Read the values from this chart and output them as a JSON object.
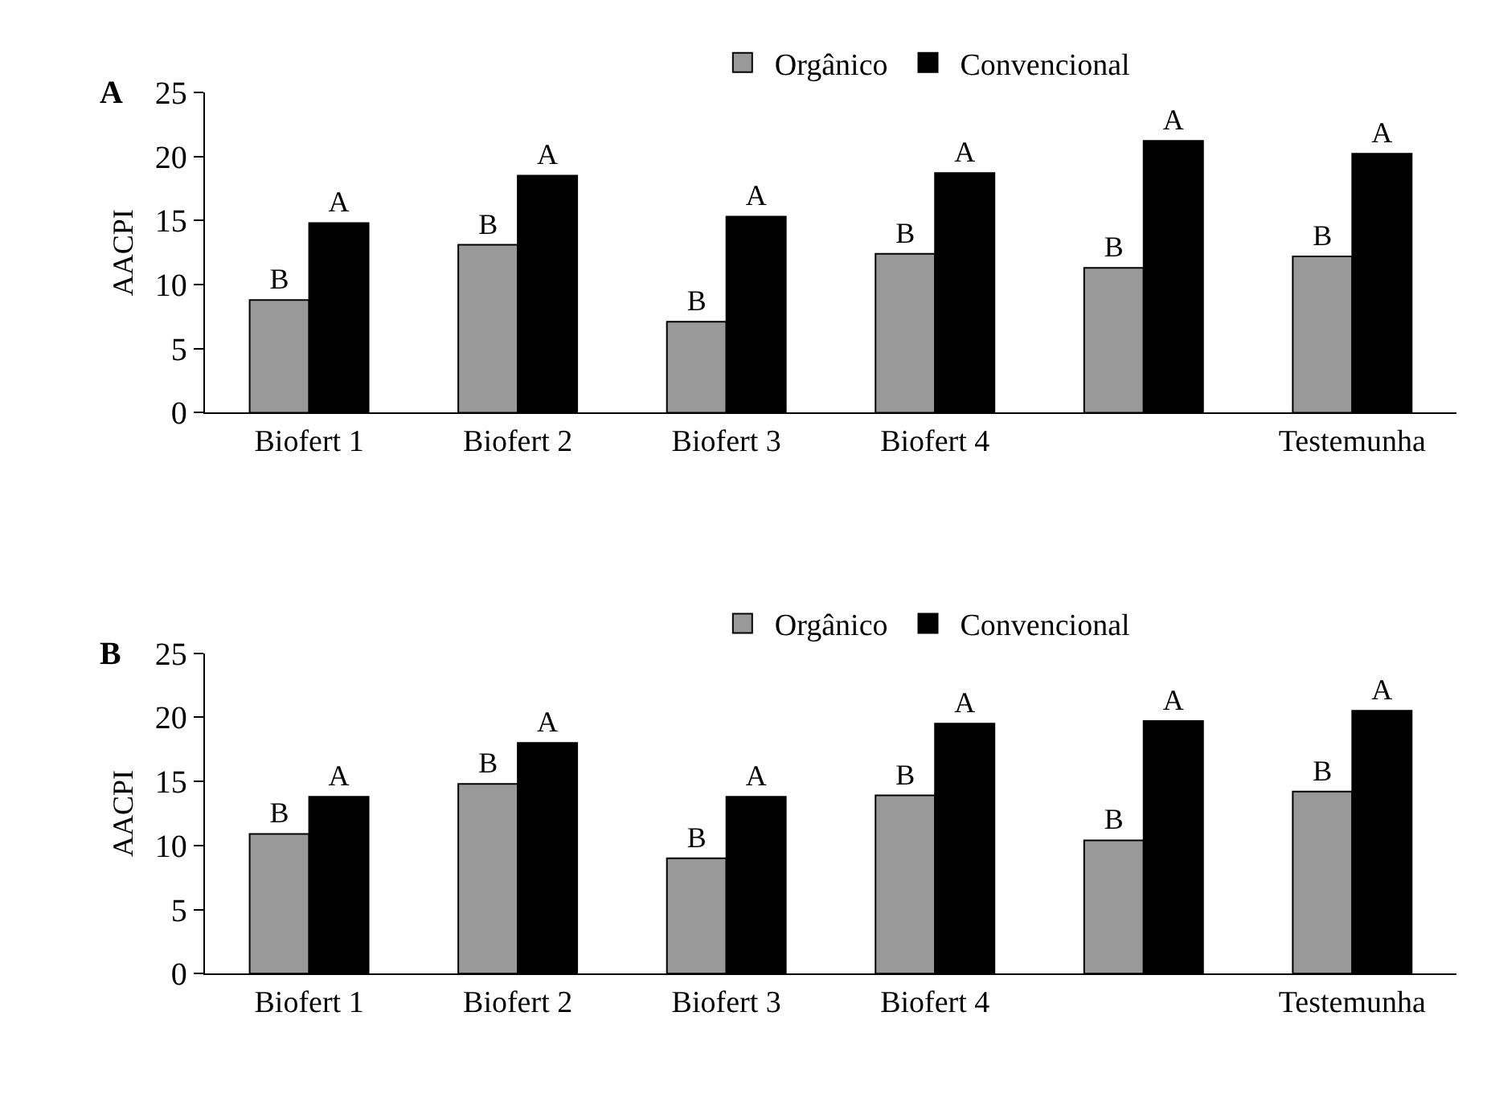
{
  "chart_data": [
    {
      "type": "bar",
      "title": "A",
      "ylabel": "AACPI",
      "categories": [
        "Biofert 1",
        "Biofert 2",
        "Biofert 3",
        "Biofert 4",
        null,
        "Testemunha"
      ],
      "ylim": [
        0,
        25
      ],
      "yticks": [
        0,
        5,
        10,
        15,
        20,
        25
      ],
      "grid": false,
      "legend": "top",
      "series": [
        {
          "name": "Orgânico",
          "color": "#999999",
          "values": [
            8.8,
            13.1,
            7.1,
            12.4,
            11.3,
            12.2
          ],
          "value_labels": [
            "B",
            "B",
            "B",
            "B",
            "B",
            "B"
          ]
        },
        {
          "name": "Convencional",
          "color": "#000000",
          "values": [
            14.8,
            18.5,
            15.3,
            18.7,
            21.2,
            20.2
          ],
          "value_labels": [
            "A",
            "A",
            "A",
            "A",
            "A",
            "A"
          ]
        }
      ]
    },
    {
      "type": "bar",
      "title": "B",
      "ylabel": "AACPI",
      "categories": [
        "Biofert 1",
        "Biofert 2",
        "Biofert 3",
        "Biofert 4",
        null,
        "Testemunha"
      ],
      "ylim": [
        0,
        25
      ],
      "yticks": [
        0,
        5,
        10,
        15,
        20,
        25
      ],
      "grid": false,
      "legend": "top",
      "series": [
        {
          "name": "Orgânico",
          "color": "#999999",
          "values": [
            10.9,
            14.8,
            9.0,
            13.9,
            10.4,
            14.2
          ],
          "value_labels": [
            "B",
            "B",
            "B",
            "B",
            "B",
            "B"
          ]
        },
        {
          "name": "Convencional",
          "color": "#000000",
          "values": [
            13.8,
            18.0,
            13.8,
            19.5,
            19.7,
            20.5
          ],
          "value_labels": [
            "A",
            "A",
            "A",
            "A",
            "A",
            "A"
          ]
        }
      ]
    }
  ]
}
